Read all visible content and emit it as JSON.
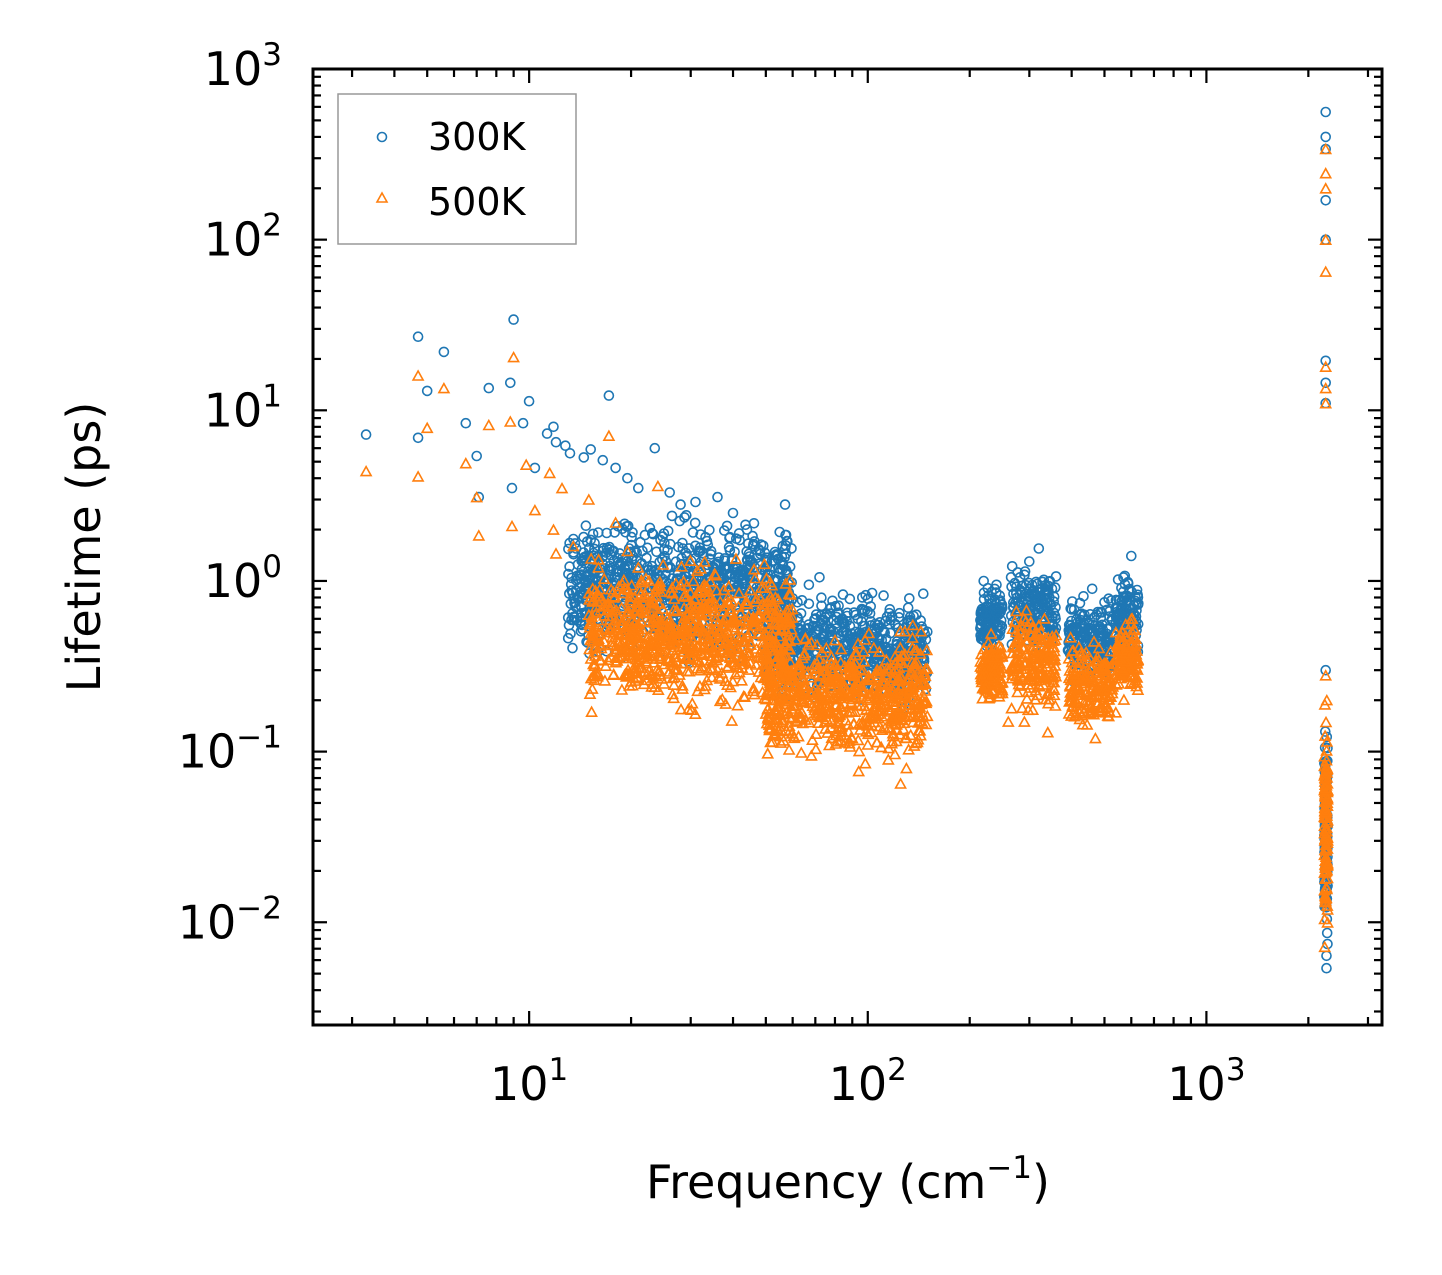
{
  "chart_data": {
    "type": "scatter",
    "xscale": "log",
    "yscale": "log",
    "xlim": [
      2.3,
      3300
    ],
    "ylim": [
      0.0025,
      1000
    ],
    "xlabel": "Frequency (cm",
    "xlabel_exp": "−1",
    "xlabel_suffix": ")",
    "ylabel": "Lifetime (ps)",
    "x_ticks": [
      {
        "value": 10,
        "base": "10",
        "exp": "1"
      },
      {
        "value": 100,
        "base": "10",
        "exp": "2"
      },
      {
        "value": 1000,
        "base": "10",
        "exp": "3"
      }
    ],
    "y_ticks": [
      {
        "value": 0.01,
        "base": "10",
        "exp": "−2"
      },
      {
        "value": 0.1,
        "base": "10",
        "exp": "−1"
      },
      {
        "value": 1,
        "base": "10",
        "exp": "0"
      },
      {
        "value": 10,
        "base": "10",
        "exp": "1"
      },
      {
        "value": 100,
        "base": "10",
        "exp": "2"
      },
      {
        "value": 1000,
        "base": "10",
        "exp": "3"
      }
    ],
    "legend_position": "top-left",
    "series": [
      {
        "name": "300K",
        "marker": "circle",
        "color": "#1f77b4",
        "points": [
          [
            3.3,
            7.2
          ],
          [
            4.7,
            27
          ],
          [
            4.7,
            6.9
          ],
          [
            5.0,
            13
          ],
          [
            5.6,
            22
          ],
          [
            6.5,
            8.4
          ],
          [
            7.0,
            5.4
          ],
          [
            7.1,
            3.1
          ],
          [
            7.6,
            13.5
          ],
          [
            8.8,
            14.5
          ],
          [
            8.9,
            3.5
          ],
          [
            9.0,
            34
          ],
          [
            9.6,
            8.4
          ],
          [
            10.0,
            11.3
          ],
          [
            10.4,
            4.6
          ],
          [
            11.3,
            7.3
          ],
          [
            11.8,
            8.0
          ],
          [
            12.0,
            6.5
          ],
          [
            12.8,
            6.2
          ],
          [
            13.2,
            5.6
          ],
          [
            14.5,
            5.3
          ],
          [
            15.2,
            5.9
          ],
          [
            16.5,
            5.1
          ],
          [
            17.2,
            12.2
          ],
          [
            18.0,
            4.6
          ],
          [
            19.5,
            4.0
          ],
          [
            21.0,
            3.5
          ],
          [
            23.5,
            6.0
          ],
          [
            26.0,
            3.3
          ],
          [
            28.0,
            2.8
          ],
          [
            31.0,
            2.9
          ],
          [
            36.0,
            3.1
          ],
          [
            40.0,
            2.5
          ],
          [
            44.0,
            2.0
          ],
          [
            48.0,
            1.5
          ],
          [
            53.0,
            1.0
          ],
          [
            57.0,
            2.8
          ],
          [
            62.0,
            0.75
          ],
          [
            67.0,
            0.95
          ],
          [
            72.0,
            1.05
          ],
          [
            78.0,
            0.7
          ],
          [
            85.0,
            0.5
          ],
          [
            95.0,
            0.45
          ],
          [
            103.0,
            0.85
          ],
          [
            110.0,
            0.45
          ],
          [
            118.0,
            0.62
          ],
          [
            125.0,
            0.42
          ],
          [
            135.0,
            0.55
          ],
          [
            145.0,
            0.38
          ],
          [
            220.0,
            1.0
          ],
          [
            240.0,
            0.95
          ],
          [
            265.0,
            1.05
          ],
          [
            300.0,
            1.3
          ],
          [
            320.0,
            1.55
          ],
          [
            350.0,
            0.9
          ],
          [
            400.0,
            0.68
          ],
          [
            460.0,
            0.9
          ],
          [
            500.0,
            0.75
          ],
          [
            560.0,
            0.6
          ],
          [
            600.0,
            1.4
          ],
          [
            2250,
            560
          ],
          [
            2250,
            400
          ],
          [
            2250,
            340
          ],
          [
            2250,
            170
          ],
          [
            2250,
            100
          ],
          [
            2250,
            19.5
          ],
          [
            2250,
            14.5
          ],
          [
            2250,
            11
          ],
          [
            2250,
            0.3
          ]
        ],
        "clusters": [
          {
            "x_range": [
              13,
              60
            ],
            "y_decades": [
              -0.55,
              0.45
            ]
          },
          {
            "x_range": [
              50,
              150
            ],
            "y_decades": [
              -0.8,
              0.0
            ]
          },
          {
            "x_range": [
              215,
              250
            ],
            "y_decades": [
              -0.45,
              0.02
            ]
          },
          {
            "x_range": [
              265,
              360
            ],
            "y_decades": [
              -0.5,
              0.15
            ]
          },
          {
            "x_range": [
              390,
              530
            ],
            "y_decades": [
              -0.65,
              -0.05
            ]
          },
          {
            "x_range": [
              540,
              630
            ],
            "y_decades": [
              -0.55,
              0.12
            ]
          },
          {
            "x_range": [
              2230,
              2280
            ],
            "y_decades": [
              -2.4,
              -0.55
            ]
          }
        ]
      },
      {
        "name": "500K",
        "marker": "triangle",
        "color": "#ff7f0e",
        "points": [
          [
            3.3,
            4.4
          ],
          [
            4.7,
            16
          ],
          [
            4.7,
            4.1
          ],
          [
            5.0,
            7.9
          ],
          [
            5.6,
            13.5
          ],
          [
            6.5,
            4.9
          ],
          [
            7.0,
            3.1
          ],
          [
            7.1,
            1.85
          ],
          [
            7.6,
            8.2
          ],
          [
            8.8,
            8.6
          ],
          [
            8.9,
            2.1
          ],
          [
            9.0,
            20.5
          ],
          [
            9.8,
            4.8
          ],
          [
            10.4,
            2.6
          ],
          [
            11.5,
            4.3
          ],
          [
            11.8,
            2.0
          ],
          [
            12.0,
            1.45
          ],
          [
            12.5,
            3.5
          ],
          [
            13.5,
            1.6
          ],
          [
            15.0,
            3.0
          ],
          [
            17.2,
            7.1
          ],
          [
            18.0,
            2.2
          ],
          [
            19.5,
            1.5
          ],
          [
            21.0,
            1.2
          ],
          [
            24.0,
            3.6
          ],
          [
            28.0,
            0.95
          ],
          [
            33.0,
            1.3
          ],
          [
            40.0,
            0.6
          ],
          [
            45.0,
            0.5
          ],
          [
            50.0,
            0.4
          ],
          [
            60.0,
            0.22
          ],
          [
            75.0,
            0.3
          ],
          [
            80.0,
            0.45
          ],
          [
            90.0,
            0.12
          ],
          [
            100.0,
            0.11
          ],
          [
            115.0,
            0.09
          ],
          [
            125.0,
            0.065
          ],
          [
            130.0,
            0.08
          ],
          [
            135.0,
            0.16
          ],
          [
            145.0,
            0.2
          ],
          [
            220.0,
            0.4
          ],
          [
            245.0,
            0.22
          ],
          [
            260.0,
            0.15
          ],
          [
            290.0,
            0.15
          ],
          [
            320.0,
            0.55
          ],
          [
            340.0,
            0.13
          ],
          [
            400.0,
            0.2
          ],
          [
            470.0,
            0.12
          ],
          [
            540.0,
            0.17
          ],
          [
            600.0,
            0.6
          ],
          [
            2250,
            340
          ],
          [
            2250,
            245
          ],
          [
            2250,
            200
          ],
          [
            2250,
            100
          ],
          [
            2250,
            65
          ],
          [
            2250,
            18
          ],
          [
            2250,
            13.5
          ],
          [
            2250,
            11
          ],
          [
            2250,
            0.28
          ]
        ],
        "clusters": [
          {
            "x_range": [
              15,
              60
            ],
            "y_decades": [
              -0.85,
              0.2
            ]
          },
          {
            "x_range": [
              50,
              150
            ],
            "y_decades": [
              -1.15,
              -0.2
            ]
          },
          {
            "x_range": [
              215,
              250
            ],
            "y_decades": [
              -0.75,
              -0.3
            ]
          },
          {
            "x_range": [
              265,
              360
            ],
            "y_decades": [
              -0.85,
              -0.05
            ]
          },
          {
            "x_range": [
              390,
              530
            ],
            "y_decades": [
              -0.9,
              -0.3
            ]
          },
          {
            "x_range": [
              540,
              630
            ],
            "y_decades": [
              -0.75,
              -0.15
            ]
          },
          {
            "x_range": [
              2230,
              2280
            ],
            "y_decades": [
              -2.38,
              -0.6
            ]
          }
        ]
      }
    ]
  }
}
